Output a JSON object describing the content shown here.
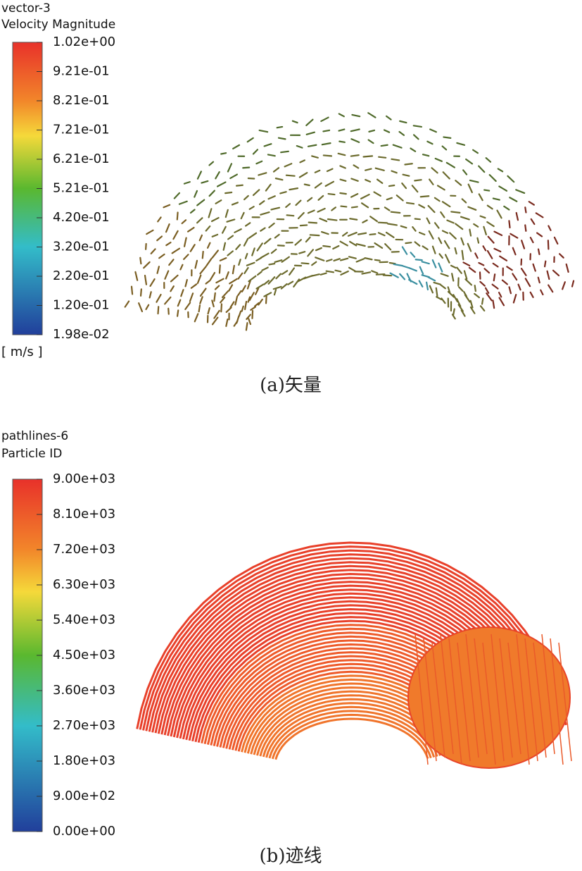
{
  "figures": [
    {
      "legend": {
        "title": "vector-3",
        "quantity": "Velocity Magnitude",
        "ticks": [
          "1.02e+00",
          "9.21e-01",
          "8.21e-01",
          "7.21e-01",
          "6.21e-01",
          "5.21e-01",
          "4.20e-01",
          "3.20e-01",
          "2.20e-01",
          "1.20e-01",
          "1.98e-02"
        ],
        "unit": "[ m/s ]"
      },
      "caption": "(a)矢量"
    },
    {
      "legend": {
        "title": "pathlines-6",
        "quantity": "Particle ID",
        "ticks": [
          "9.00e+03",
          "8.10e+03",
          "7.20e+03",
          "6.30e+03",
          "5.40e+03",
          "4.50e+03",
          "3.60e+03",
          "2.70e+03",
          "1.80e+03",
          "9.00e+02",
          "0.00e+00"
        ]
      },
      "caption": "(b)迹线"
    }
  ]
}
